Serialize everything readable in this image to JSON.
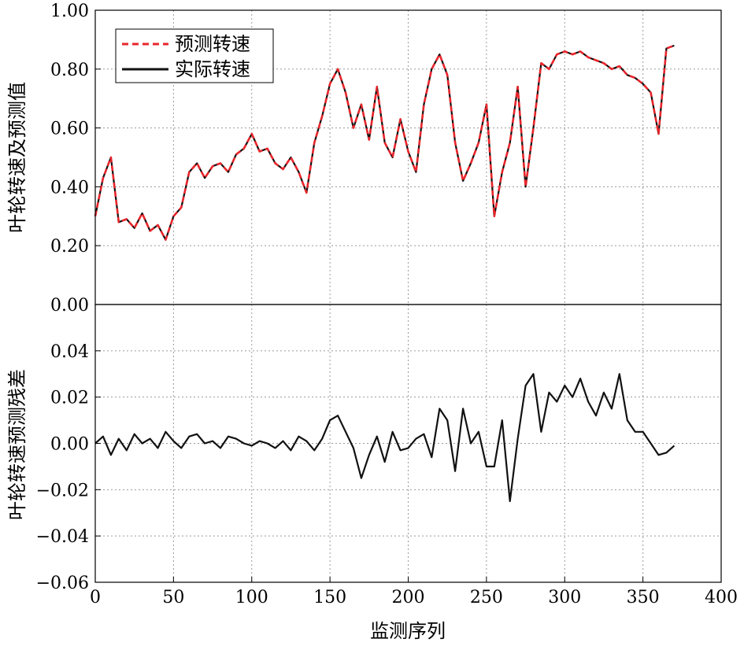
{
  "chart_data": [
    {
      "type": "line",
      "xlabel": "",
      "ylabel": "叶轮转速及预测值",
      "xlim": [
        0,
        400
      ],
      "ylim": [
        0.0,
        1.0
      ],
      "xticks": [],
      "yticks": [
        "0.00",
        "0.20",
        "0.40",
        "0.60",
        "0.80",
        "1.00"
      ],
      "grid": true,
      "legend_position": "top-left",
      "x": [
        0,
        5,
        10,
        15,
        20,
        25,
        30,
        35,
        40,
        45,
        50,
        55,
        60,
        65,
        70,
        75,
        80,
        85,
        90,
        95,
        100,
        105,
        110,
        115,
        120,
        125,
        130,
        135,
        140,
        145,
        150,
        155,
        160,
        165,
        170,
        175,
        180,
        185,
        190,
        195,
        200,
        205,
        210,
        215,
        220,
        225,
        230,
        235,
        240,
        245,
        250,
        255,
        260,
        265,
        270,
        275,
        280,
        285,
        290,
        295,
        300,
        305,
        310,
        315,
        320,
        325,
        330,
        335,
        340,
        345,
        350,
        355,
        360,
        365,
        370
      ],
      "series": [
        {
          "name": "预测转速",
          "color": "#e8262c",
          "dash": "dashed",
          "values": [
            0.3,
            0.43,
            0.5,
            0.28,
            0.29,
            0.26,
            0.31,
            0.25,
            0.27,
            0.22,
            0.3,
            0.33,
            0.45,
            0.48,
            0.43,
            0.47,
            0.48,
            0.45,
            0.51,
            0.53,
            0.58,
            0.52,
            0.53,
            0.48,
            0.46,
            0.5,
            0.45,
            0.38,
            0.55,
            0.64,
            0.75,
            0.8,
            0.72,
            0.6,
            0.68,
            0.56,
            0.74,
            0.55,
            0.5,
            0.63,
            0.52,
            0.45,
            0.68,
            0.8,
            0.85,
            0.78,
            0.55,
            0.42,
            0.48,
            0.55,
            0.68,
            0.3,
            0.45,
            0.55,
            0.74,
            0.4,
            0.6,
            0.82,
            0.8,
            0.85,
            0.86,
            0.85,
            0.86,
            0.84,
            0.83,
            0.82,
            0.8,
            0.81,
            0.78,
            0.77,
            0.75,
            0.72,
            0.58,
            0.87,
            0.88
          ]
        },
        {
          "name": "实际转速",
          "color": "#111111",
          "dash": "solid",
          "values": [
            0.3,
            0.43,
            0.5,
            0.28,
            0.29,
            0.26,
            0.31,
            0.25,
            0.27,
            0.22,
            0.3,
            0.33,
            0.45,
            0.48,
            0.43,
            0.47,
            0.48,
            0.45,
            0.51,
            0.53,
            0.58,
            0.52,
            0.53,
            0.48,
            0.46,
            0.5,
            0.45,
            0.38,
            0.55,
            0.64,
            0.75,
            0.8,
            0.72,
            0.6,
            0.68,
            0.56,
            0.74,
            0.55,
            0.5,
            0.63,
            0.52,
            0.45,
            0.68,
            0.8,
            0.85,
            0.78,
            0.55,
            0.42,
            0.48,
            0.55,
            0.68,
            0.3,
            0.45,
            0.55,
            0.74,
            0.4,
            0.6,
            0.82,
            0.8,
            0.85,
            0.86,
            0.85,
            0.86,
            0.84,
            0.83,
            0.82,
            0.8,
            0.81,
            0.78,
            0.77,
            0.75,
            0.72,
            0.58,
            0.87,
            0.88
          ]
        }
      ]
    },
    {
      "type": "line",
      "xlabel": "监测序列",
      "ylabel": "叶轮转速预测残差",
      "xlim": [
        0,
        400
      ],
      "ylim": [
        -0.06,
        0.06
      ],
      "xticks": [
        "0",
        "50",
        "100",
        "150",
        "200",
        "250",
        "300",
        "350",
        "400"
      ],
      "yticks": [
        "−0.06",
        "−0.04",
        "−0.02",
        "0.00",
        "0.02",
        "0.04"
      ],
      "grid": true,
      "x": [
        0,
        5,
        10,
        15,
        20,
        25,
        30,
        35,
        40,
        45,
        50,
        55,
        60,
        65,
        70,
        75,
        80,
        85,
        90,
        95,
        100,
        105,
        110,
        115,
        120,
        125,
        130,
        135,
        140,
        145,
        150,
        155,
        160,
        165,
        170,
        175,
        180,
        185,
        190,
        195,
        200,
        205,
        210,
        215,
        220,
        225,
        230,
        235,
        240,
        245,
        250,
        255,
        260,
        265,
        270,
        275,
        280,
        285,
        290,
        295,
        300,
        305,
        310,
        315,
        320,
        325,
        330,
        335,
        340,
        345,
        350,
        355,
        360,
        365,
        370
      ],
      "series": [
        {
          "color": "#111111",
          "dash": "solid",
          "values": [
            0.0,
            0.003,
            -0.005,
            0.002,
            -0.003,
            0.004,
            0.0,
            0.002,
            -0.002,
            0.005,
            0.001,
            -0.002,
            0.003,
            0.004,
            0.0,
            0.001,
            -0.002,
            0.003,
            0.002,
            0.0,
            -0.001,
            0.001,
            0.0,
            -0.002,
            0.001,
            -0.003,
            0.003,
            0.001,
            -0.003,
            0.002,
            0.01,
            0.012,
            0.005,
            -0.002,
            -0.015,
            -0.005,
            0.003,
            -0.008,
            0.005,
            -0.003,
            -0.002,
            0.002,
            0.004,
            -0.006,
            0.015,
            0.01,
            -0.012,
            0.015,
            0.0,
            0.005,
            -0.01,
            -0.01,
            0.01,
            -0.025,
            0.002,
            0.025,
            0.03,
            0.005,
            0.022,
            0.018,
            0.025,
            0.02,
            0.028,
            0.018,
            0.012,
            0.022,
            0.015,
            0.03,
            0.01,
            0.005,
            0.005,
            0.0,
            -0.005,
            -0.004,
            -0.001
          ]
        }
      ]
    }
  ]
}
